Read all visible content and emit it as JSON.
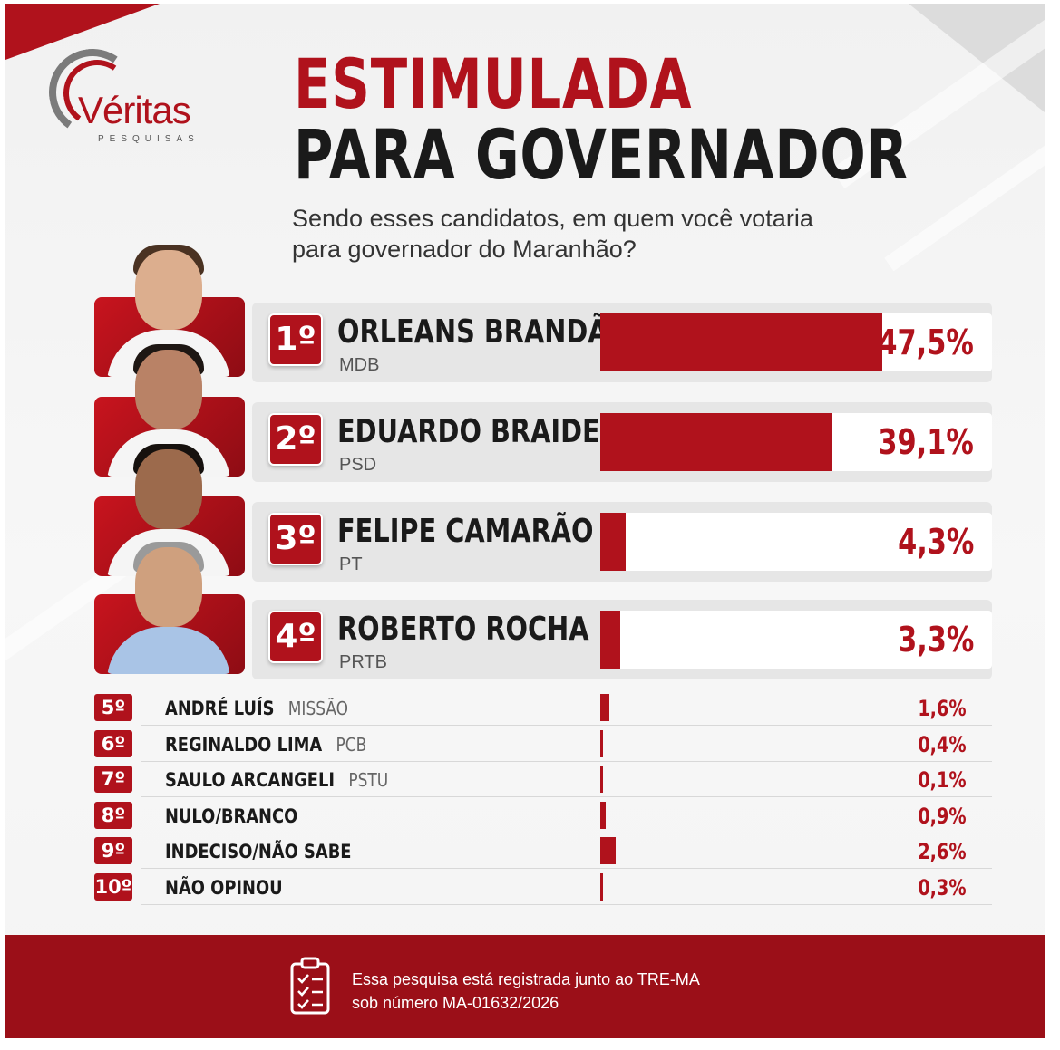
{
  "logo": {
    "brand": "Véritas",
    "sub": "PESQUISAS"
  },
  "header": {
    "title_line1": "ESTIMULADA",
    "title_line2": "PARA GOVERNADOR",
    "question": "Sendo esses candidatos, em quem você votaria para governador do Maranhão?"
  },
  "colors": {
    "accent": "#b0121c",
    "footer": "#9b0f18",
    "text": "#1a1a1a"
  },
  "chart_data": {
    "type": "bar",
    "orientation": "horizontal",
    "title": "ESTIMULADA PARA GOVERNADOR",
    "unit": "%",
    "top_candidates": [
      {
        "rank": "1º",
        "name": "ORLEANS BRANDÃO",
        "party": "MDB",
        "value": 47.5,
        "label": "47,5%"
      },
      {
        "rank": "2º",
        "name": "EDUARDO BRAIDE",
        "party": "PSD",
        "value": 39.1,
        "label": "39,1%"
      },
      {
        "rank": "3º",
        "name": "FELIPE CAMARÃO",
        "party": "PT",
        "value": 4.3,
        "label": "4,3%"
      },
      {
        "rank": "4º",
        "name": "ROBERTO ROCHA",
        "party": "PRTB",
        "value": 3.3,
        "label": "3,3%"
      }
    ],
    "others": [
      {
        "rank": "5º",
        "name": "ANDRÉ LUÍS",
        "party": "MISSÃO",
        "value": 1.6,
        "label": "1,6%"
      },
      {
        "rank": "6º",
        "name": "REGINALDO LIMA",
        "party": "PCB",
        "value": 0.4,
        "label": "0,4%"
      },
      {
        "rank": "7º",
        "name": "SAULO ARCANGELI",
        "party": "PSTU",
        "value": 0.1,
        "label": "0,1%"
      },
      {
        "rank": "8º",
        "name": "NULO/BRANCO",
        "party": "",
        "value": 0.9,
        "label": "0,9%"
      },
      {
        "rank": "9º",
        "name": "INDECISO/NÃO SABE",
        "party": "",
        "value": 2.6,
        "label": "2,6%"
      },
      {
        "rank": "10º",
        "name": "NÃO OPINOU",
        "party": "",
        "value": 0.3,
        "label": "0,3%"
      }
    ]
  },
  "footer": {
    "line1": "Essa pesquisa está registrada junto ao TRE-MA",
    "line2": "sob número MA-01632/2026",
    "icon": "clipboard-checklist-icon"
  }
}
